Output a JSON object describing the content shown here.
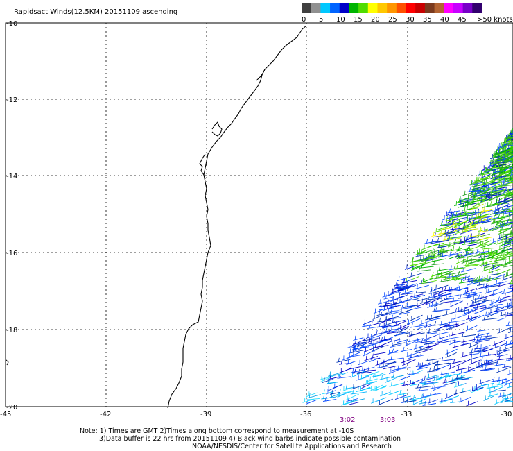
{
  "title": "Rapidsact Winds(12.5KM) 20151109 ascending",
  "legend": {
    "labels": [
      "0",
      "5",
      "10",
      "15",
      "20",
      "25",
      "30",
      "35",
      "40",
      "45",
      ">50 knots"
    ],
    "colors": [
      "#404040",
      "#909090",
      "#00c8ff",
      "#0064ff",
      "#0000c8",
      "#00b400",
      "#50dc00",
      "#ffff00",
      "#ffc800",
      "#ff9600",
      "#ff5000",
      "#ff0000",
      "#c80000",
      "#7a3a1e",
      "#b46432",
      "#ff00ff",
      "#c800ff",
      "#7800c8",
      "#32006e"
    ]
  },
  "axes": {
    "lat_labels": [
      "-10",
      "-12",
      "-14",
      "-16",
      "-18",
      "-20"
    ],
    "lon_labels": [
      "-45",
      "-42",
      "-39",
      "-36",
      "-33",
      "-30"
    ]
  },
  "times": [
    "3:02",
    "3:03"
  ],
  "notes": [
    "Note: 1) Times are GMT 2)Times along bottom correspond to measurement at -10S",
    "3)Data buffer is 22 hrs from 20151109 4) Black wind barbs indicate possible contamination",
    "NOAA/NESDIS/Center for Satellite Applications and Research"
  ],
  "colors": {
    "grid": "#000000",
    "time_label": "#800080"
  }
}
